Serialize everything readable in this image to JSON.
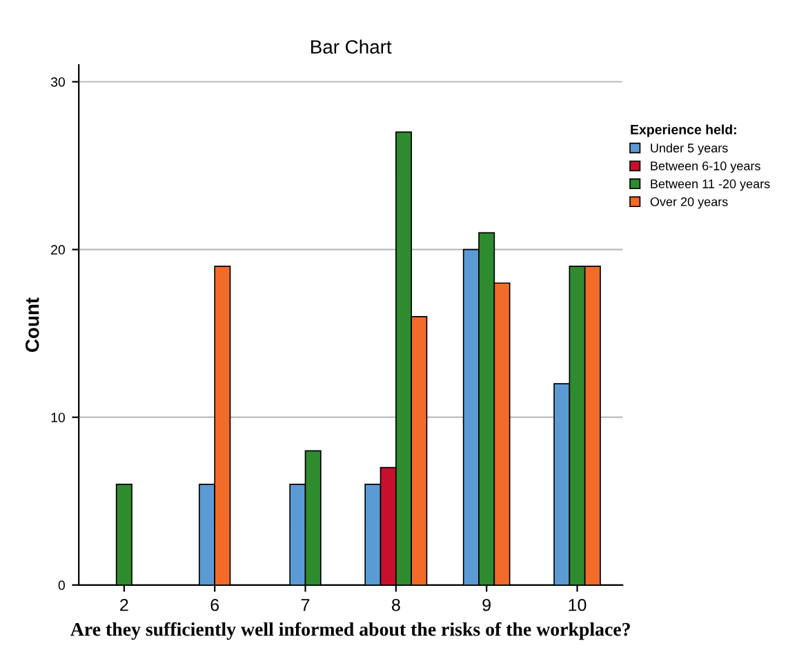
{
  "chart_data": {
    "type": "bar",
    "title": "Bar Chart",
    "xlabel": "Are they sufficiently well informed about the risks of the workplace?",
    "ylabel": "Count",
    "legend_title": "Experience held:",
    "categories": [
      "2",
      "6",
      "7",
      "8",
      "9",
      "10"
    ],
    "series": [
      {
        "name": "Under 5 years",
        "color": "#5b9bd5",
        "values": [
          null,
          6,
          6,
          6,
          20,
          12
        ]
      },
      {
        "name": "Between 6-10 years",
        "color": "#c8102e",
        "values": [
          null,
          null,
          null,
          7,
          null,
          null
        ]
      },
      {
        "name": "Between 11 -20 years",
        "color": "#2e8b2e",
        "values": [
          6,
          null,
          8,
          27,
          21,
          19
        ]
      },
      {
        "name": "Over 20 years",
        "color": "#f26b2a",
        "values": [
          null,
          19,
          null,
          16,
          18,
          19
        ]
      }
    ],
    "ylim": [
      0,
      31
    ],
    "yticks": [
      0,
      10,
      20,
      30
    ],
    "grid": "y",
    "legend": "right"
  }
}
